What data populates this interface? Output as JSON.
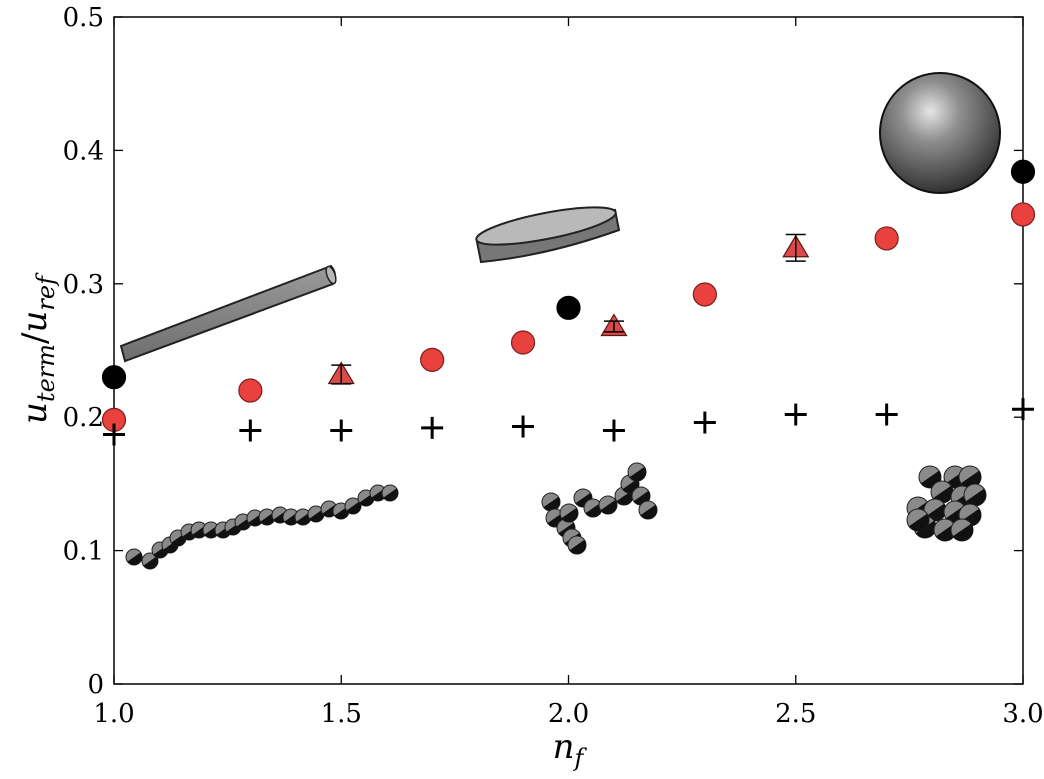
{
  "chart_data": {
    "type": "scatter",
    "title": "",
    "xlabel": {
      "base": "n",
      "sub": "f"
    },
    "ylabel": {
      "num_base": "u",
      "num_sub": "term",
      "sep": "/",
      "den_base": "u",
      "den_sub": "ref"
    },
    "xlim": [
      1.0,
      3.0
    ],
    "ylim": [
      0,
      0.5
    ],
    "x_ticks": [
      1.0,
      1.5,
      2.0,
      2.5,
      3.0
    ],
    "x_tick_labels": [
      "1.0",
      "1.5",
      "2.0",
      "2.5",
      "3.0"
    ],
    "y_ticks": [
      0,
      0.1,
      0.2,
      0.3,
      0.4,
      0.5
    ],
    "y_tick_labels": [
      "0",
      "0.1",
      "0.2",
      "0.3",
      "0.4",
      "0.5"
    ],
    "grid": false,
    "legend": "none",
    "series": [
      {
        "marker": "circle",
        "color": "#000000",
        "points": [
          {
            "x": 1.0,
            "y": 0.23
          },
          {
            "x": 2.0,
            "y": 0.282
          },
          {
            "x": 3.0,
            "y": 0.384
          }
        ]
      },
      {
        "marker": "circle",
        "color": "#e8413e",
        "points": [
          {
            "x": 1.0,
            "y": 0.198
          },
          {
            "x": 1.3,
            "y": 0.22
          },
          {
            "x": 1.7,
            "y": 0.243
          },
          {
            "x": 1.9,
            "y": 0.256
          },
          {
            "x": 2.3,
            "y": 0.292
          },
          {
            "x": 2.7,
            "y": 0.334
          },
          {
            "x": 3.0,
            "y": 0.352
          }
        ]
      },
      {
        "marker": "triangle",
        "color": "#d94a4a",
        "points": [
          {
            "x": 1.5,
            "y": 0.232,
            "err": 0.007
          },
          {
            "x": 2.1,
            "y": 0.268,
            "err": 0.004
          },
          {
            "x": 2.5,
            "y": 0.327,
            "err": 0.01
          }
        ]
      },
      {
        "marker": "plus",
        "color": "#000000",
        "points": [
          {
            "x": 1.0,
            "y": 0.187
          },
          {
            "x": 1.3,
            "y": 0.19
          },
          {
            "x": 1.5,
            "y": 0.19
          },
          {
            "x": 1.7,
            "y": 0.192
          },
          {
            "x": 1.9,
            "y": 0.193
          },
          {
            "x": 2.1,
            "y": 0.19
          },
          {
            "x": 2.3,
            "y": 0.196
          },
          {
            "x": 2.5,
            "y": 0.202
          },
          {
            "x": 2.7,
            "y": 0.202
          },
          {
            "x": 3.0,
            "y": 0.206
          }
        ]
      }
    ],
    "insets": [
      "rod-illustration",
      "disk-illustration",
      "sphere-illustration",
      "chain-illustration",
      "branched-aggregate-illustration",
      "compact-cluster-illustration"
    ]
  }
}
